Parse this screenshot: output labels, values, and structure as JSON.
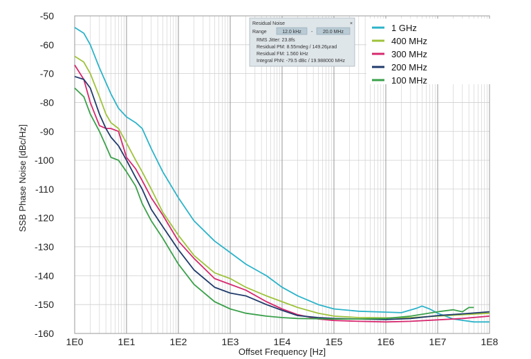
{
  "chart_data": {
    "type": "line",
    "xlabel": "Offset Frequency [Hz]",
    "ylabel": "SSB Phase Noise [dBc/Hz]",
    "xscale": "log",
    "xlim": [
      1,
      100000000
    ],
    "ylim": [
      -160,
      -50
    ],
    "x_tick_labels": [
      "1E0",
      "1E1",
      "1E2",
      "1E3",
      "1E4",
      "1E5",
      "1E6",
      "1E7",
      "1E8"
    ],
    "y_ticks": [
      -50,
      -60,
      -70,
      -80,
      -90,
      -100,
      -110,
      -120,
      -130,
      -140,
      -150,
      -160
    ],
    "grid": true,
    "legend_position": "top-right",
    "series": [
      {
        "name": "1 GHz",
        "color": "#2bb3c9",
        "x": [
          1,
          1.5,
          2,
          3,
          5,
          7,
          10,
          15,
          20,
          30,
          50,
          100,
          200,
          500,
          1000,
          2000,
          5000,
          10000,
          20000,
          50000,
          100000,
          300000,
          1000000,
          2000000,
          4000000,
          5000000,
          7000000,
          10000000,
          20000000,
          50000000,
          100000000
        ],
        "y": [
          -54,
          -56,
          -60,
          -68,
          -77,
          -82,
          -85,
          -87,
          -89,
          -96,
          -104,
          -113,
          -121,
          -128,
          -132,
          -136,
          -140,
          -144,
          -147,
          -150,
          -151.5,
          -152.3,
          -152.6,
          -152.8,
          -151.2,
          -150.5,
          -151.5,
          -153,
          -155,
          -156,
          -156
        ]
      },
      {
        "name": "400 MHz",
        "color": "#9ec23a",
        "x": [
          1,
          1.5,
          2,
          3,
          4,
          5,
          7,
          10,
          15,
          20,
          30,
          50,
          100,
          200,
          500,
          1000,
          2000,
          5000,
          10000,
          20000,
          50000,
          100000,
          300000,
          1000000,
          3000000,
          10000000,
          30000000,
          100000000
        ],
        "y": [
          -64,
          -66,
          -70,
          -78,
          -84,
          -87,
          -89,
          -94,
          -100,
          -104,
          -110,
          -118,
          -126,
          -133,
          -139,
          -141,
          -144,
          -147,
          -149,
          -151,
          -153,
          -154,
          -154.5,
          -154.6,
          -154.5,
          -154,
          -153.5,
          -153
        ]
      },
      {
        "name": "300 MHz",
        "color": "#d6286e",
        "x": [
          1,
          1.5,
          2,
          3,
          4,
          5,
          7,
          10,
          15,
          20,
          30,
          50,
          100,
          200,
          500,
          1000,
          2000,
          5000,
          10000,
          20000,
          50000,
          100000,
          300000,
          1000000,
          3000000,
          10000000,
          30000000,
          100000000
        ],
        "y": [
          -67,
          -72,
          -80,
          -88,
          -89,
          -89,
          -90,
          -99,
          -103,
          -107,
          -113,
          -119,
          -128,
          -134,
          -141,
          -143,
          -145,
          -149,
          -151.5,
          -153.5,
          -155,
          -155.5,
          -155.8,
          -156,
          -155.8,
          -155.3,
          -154.8,
          -154
        ]
      },
      {
        "name": "200 MHz",
        "color": "#1f3a6b",
        "x": [
          1,
          1.5,
          2,
          3,
          4,
          5,
          7,
          10,
          15,
          20,
          30,
          50,
          100,
          200,
          500,
          1000,
          2000,
          5000,
          10000,
          20000,
          50000,
          100000,
          300000,
          1000000,
          3000000,
          10000000,
          30000000,
          100000000
        ],
        "y": [
          -71,
          -72,
          -75,
          -84,
          -89,
          -92,
          -95,
          -100,
          -106,
          -110,
          -117,
          -123,
          -131,
          -138,
          -144,
          -146,
          -147,
          -150,
          -152,
          -153.8,
          -154.5,
          -154.8,
          -155,
          -155.2,
          -154.8,
          -153.8,
          -153.2,
          -152.5
        ]
      },
      {
        "name": "100 MHz",
        "color": "#3aa04a",
        "x": [
          1,
          1.5,
          2,
          3,
          4,
          5,
          7,
          10,
          15,
          20,
          30,
          50,
          100,
          200,
          500,
          1000,
          2000,
          5000,
          10000,
          20000,
          50000,
          100000,
          300000,
          1000000,
          3000000,
          10000000,
          20000000,
          30000000,
          40000000,
          50000000
        ],
        "y": [
          -75,
          -78,
          -84,
          -90,
          -95,
          -99,
          -100,
          -104,
          -109,
          -115,
          -121,
          -127,
          -136,
          -143,
          -149,
          -151.5,
          -153,
          -154,
          -154.5,
          -154.8,
          -154.9,
          -155,
          -155,
          -154.8,
          -154,
          -152.5,
          -151.8,
          -152.5,
          -151,
          -151
        ]
      }
    ]
  },
  "info_box": {
    "title": "Residual Noise",
    "range_label": "Range",
    "range_start": "12.0 kHz",
    "range_sep": "-",
    "range_end": "20.0 MHz",
    "rms_jitter": "RMS Jitter: 23.8fs",
    "residual_pm": "Residual PM: 8.55mdeg / 149.26µrad",
    "residual_fm": "Residual FM: 1.560 kHz",
    "integral_phn": "Integral PhN: -79.5 dBc / 19.988000 MHz",
    "close_symbol": "×"
  }
}
